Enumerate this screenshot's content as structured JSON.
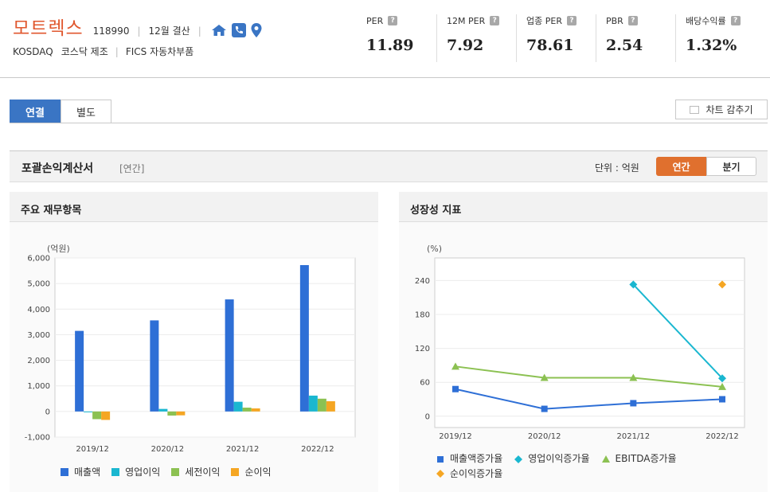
{
  "company": {
    "name": "모트렉스",
    "code": "118990",
    "settlement": "12월 결산",
    "market": "KOSDAQ",
    "sector": "코스닥 제조",
    "fics": "FICS 자동차부품",
    "icons": [
      "home-icon",
      "phone-icon",
      "location-icon"
    ]
  },
  "metrics": [
    {
      "label": "PER",
      "value": "11.89"
    },
    {
      "label": "12M PER",
      "value": "7.92"
    },
    {
      "label": "업종 PER",
      "value": "78.61"
    },
    {
      "label": "PBR",
      "value": "2.54"
    },
    {
      "label": "배당수익률",
      "value": "1.32%"
    }
  ],
  "tabs": [
    {
      "label": "연결",
      "active": true
    },
    {
      "label": "별도",
      "active": false
    }
  ],
  "hide_chart_label": "차트 감추기",
  "section": {
    "title": "포괄손익계산서",
    "subtitle": "[연간]",
    "unit": "단위 : 억원",
    "toggle": [
      {
        "label": "연간",
        "active": true
      },
      {
        "label": "분기",
        "active": false
      }
    ]
  },
  "colors": {
    "accent_blue": "#3a75c4",
    "accent_orange": "#e0702e",
    "brand_red": "#e0572e"
  },
  "panels": {
    "left_title": "주요 재무항목",
    "right_title": "성장성 지표"
  },
  "chart_data": [
    {
      "type": "bar",
      "ylabel": "(억원)",
      "categories": [
        "2019/12",
        "2020/12",
        "2021/12",
        "2022/12"
      ],
      "ylim": [
        -1000,
        6000
      ],
      "yticks": [
        -1000,
        0,
        1000,
        2000,
        3000,
        4000,
        5000,
        6000
      ],
      "ytick_labels": [
        "-1,000",
        "0",
        "1,000",
        "2,000",
        "3,000",
        "4,000",
        "5,000",
        "6,000"
      ],
      "grid": true,
      "legend": "bottom",
      "series": [
        {
          "name": "매출액",
          "color": "#2e6fd6",
          "values": [
            3150,
            3560,
            4380,
            5720
          ]
        },
        {
          "name": "영업이익",
          "color": "#1ab7d0",
          "values": [
            -20,
            100,
            380,
            620
          ]
        },
        {
          "name": "세전이익",
          "color": "#8cc152",
          "values": [
            -300,
            -160,
            150,
            500
          ]
        },
        {
          "name": "순이익",
          "color": "#f5a623",
          "values": [
            -330,
            -150,
            120,
            400
          ]
        }
      ]
    },
    {
      "type": "line",
      "ylabel": "(%)",
      "categories": [
        "2019/12",
        "2020/12",
        "2021/12",
        "2022/12"
      ],
      "ylim": [
        -20,
        280
      ],
      "yticks": [
        0,
        60,
        120,
        180,
        240
      ],
      "ytick_labels": [
        "0",
        "60",
        "120",
        "180",
        "240"
      ],
      "grid": true,
      "legend": "bottom",
      "series": [
        {
          "name": "매출액증가율",
          "color": "#2e6fd6",
          "marker": "square",
          "values": [
            48,
            13,
            23,
            30
          ]
        },
        {
          "name": "영업이익증가율",
          "color": "#1ab7d0",
          "marker": "diamond",
          "values": [
            null,
            null,
            233,
            67
          ]
        },
        {
          "name": "EBITDA증가율",
          "color": "#8cc152",
          "marker": "triangle",
          "values": [
            88,
            68,
            68,
            52
          ]
        },
        {
          "name": "순이익증가율",
          "color": "#f5a623",
          "marker": "diamond",
          "values": [
            null,
            null,
            null,
            233
          ]
        }
      ]
    }
  ]
}
